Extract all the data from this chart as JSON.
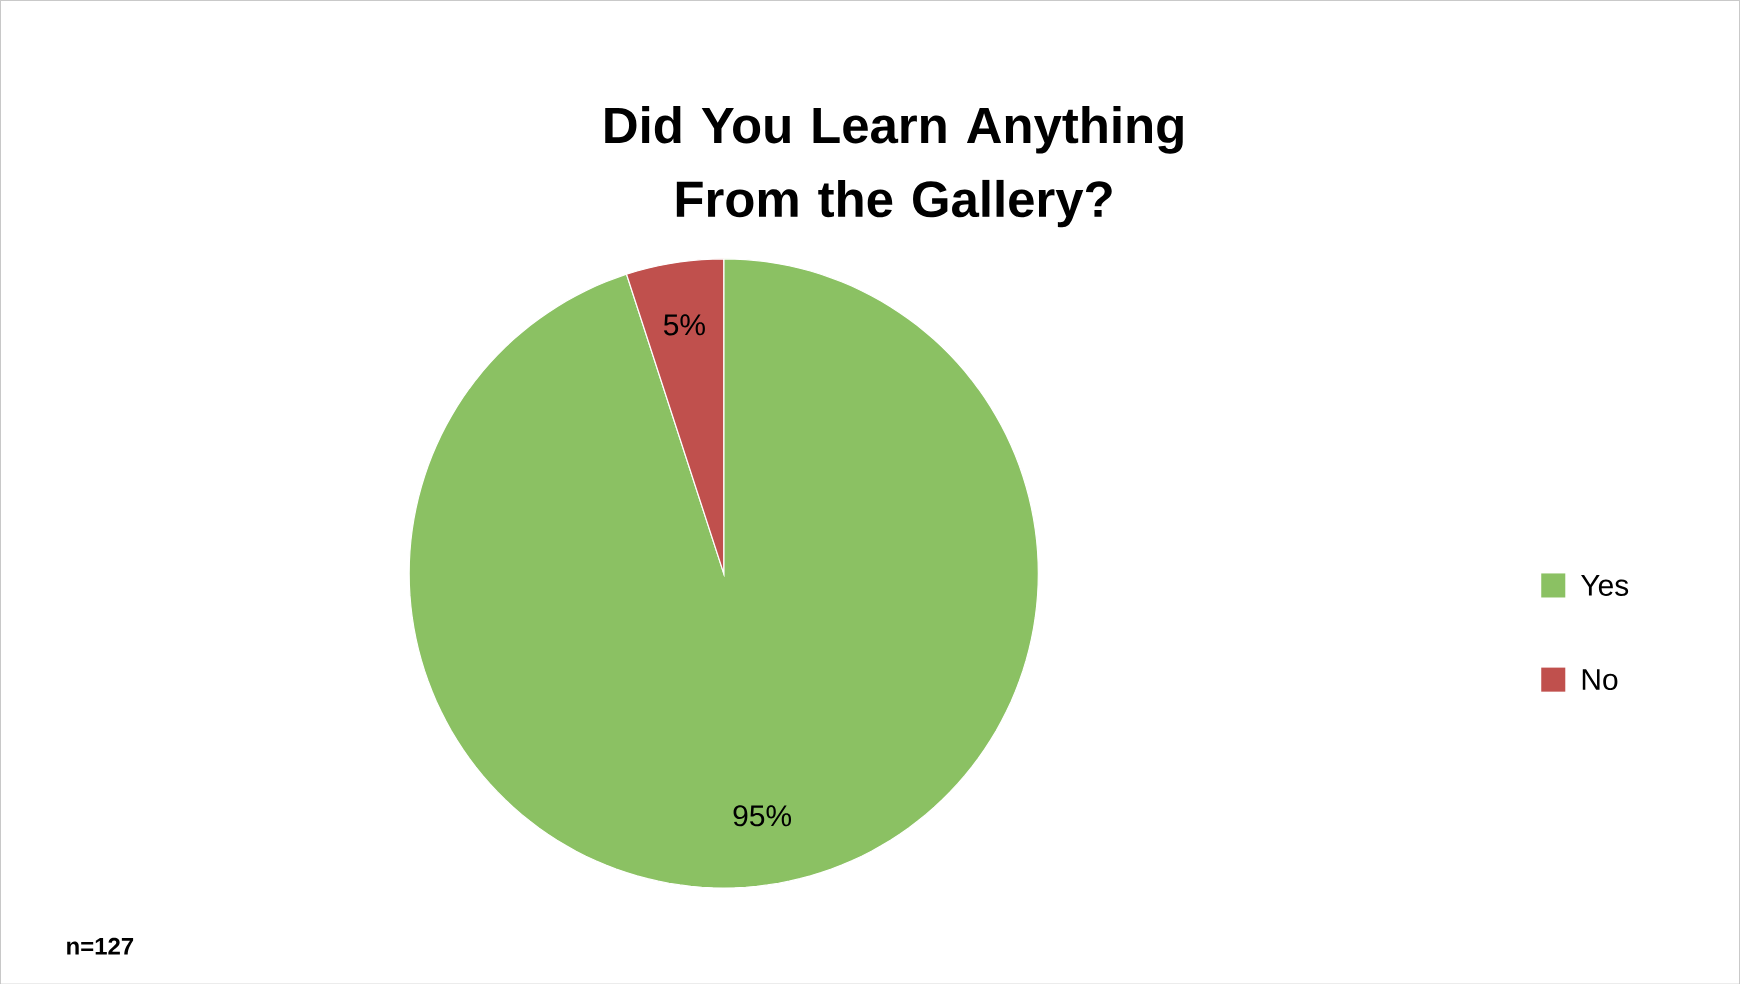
{
  "chart_data": {
    "type": "pie",
    "title": "Did You Learn Anything From the Gallery?",
    "categories": [
      "Yes",
      "No"
    ],
    "values": [
      95,
      5
    ],
    "colors": [
      "#8bc163",
      "#c0504d"
    ],
    "value_labels": [
      "95%",
      "5%"
    ],
    "legend": "right",
    "annotations": [
      "n=127"
    ]
  }
}
